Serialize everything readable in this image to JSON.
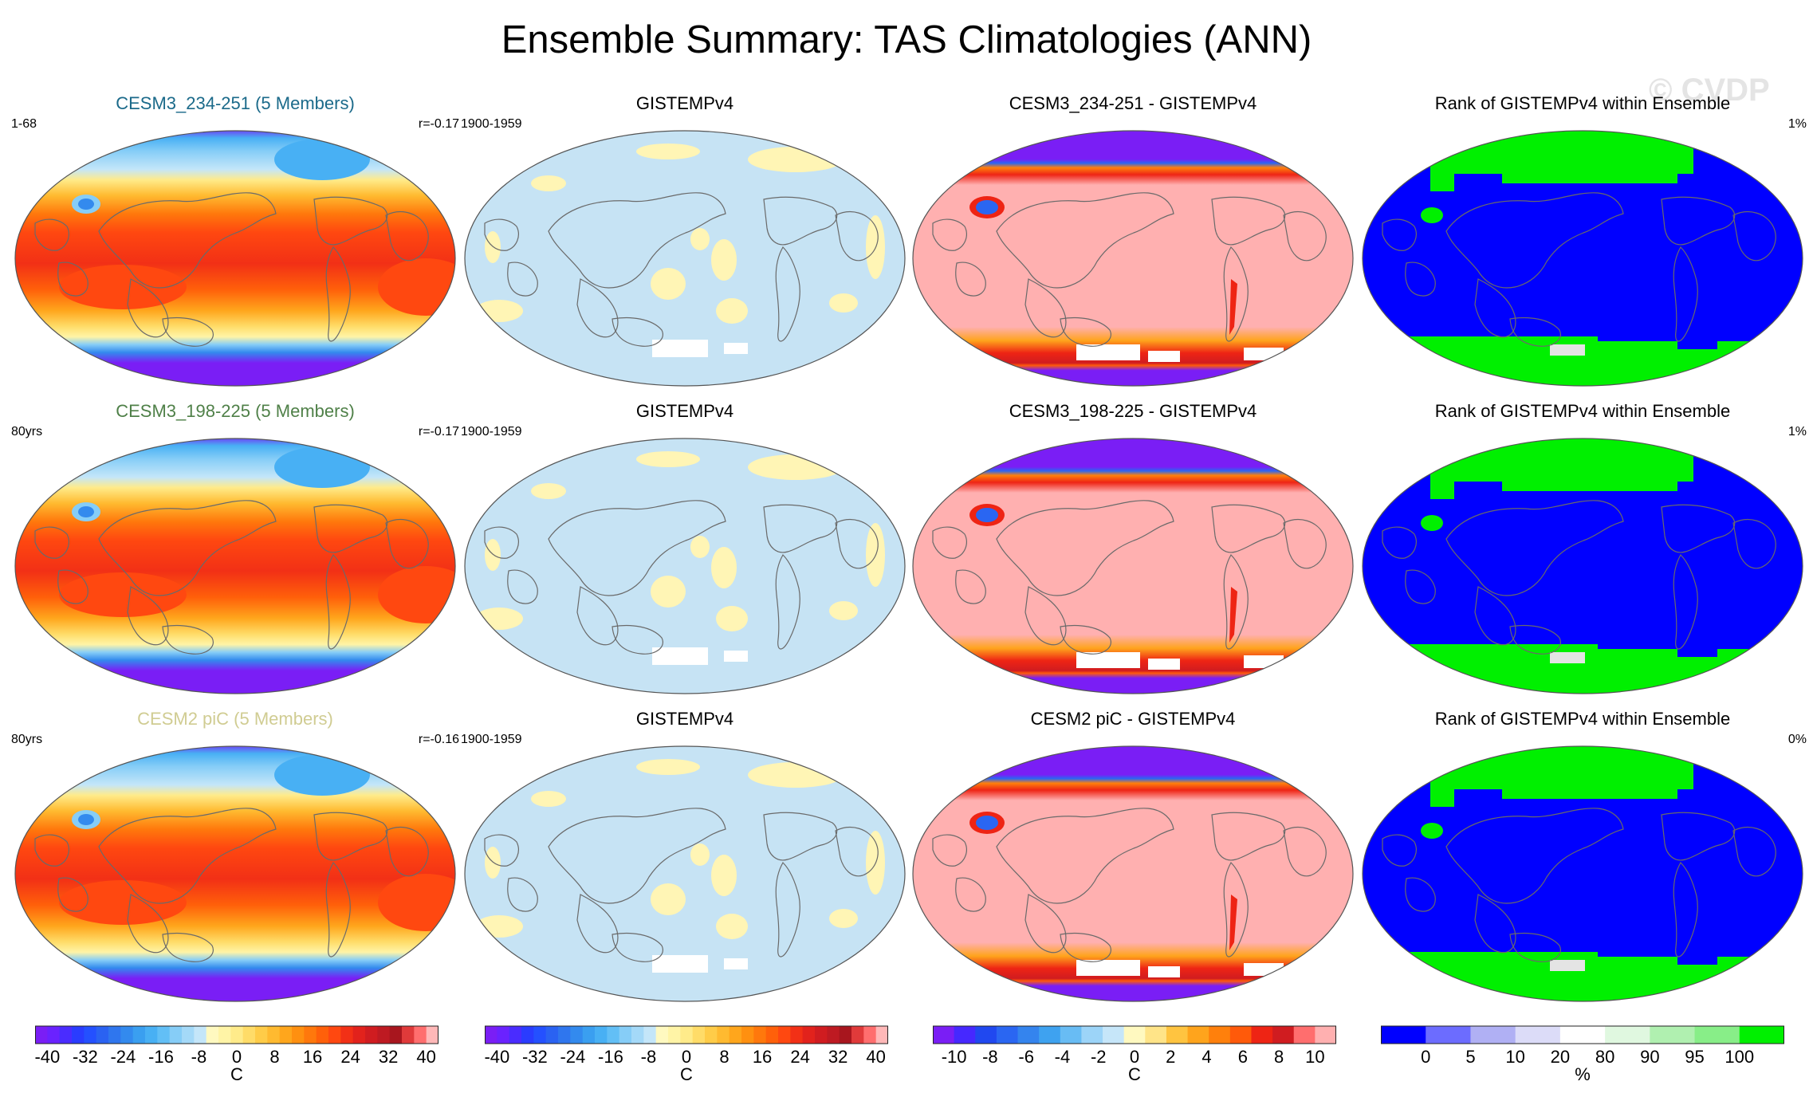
{
  "title": "Ensemble Summary: TAS Climatologies (ANN)",
  "watermark": "© CVDP",
  "colors": {
    "model_title_1": "#1b6a8a",
    "model_title_2": "#4f8048",
    "model_title_3": "#d0cc92",
    "obs_bg": "#c6e3f4",
    "obs_patch": "#fff5b5",
    "diff_bg": "#ffb0b0",
    "diff_cold": "#7a1ef5",
    "rank_low": "#0000ff",
    "rank_high": "#00f000",
    "rank_mid": "#e4e4e4"
  },
  "rows": [
    {
      "model": {
        "title": "CESM3_234-251 (5 Members)",
        "left": "1-68",
        "right": "r=-0.17"
      },
      "obs": {
        "title": "GISTEMPv4",
        "left": "1900-1959"
      },
      "diff": {
        "title": "CESM3_234-251 - GISTEMPv4"
      },
      "rank": {
        "title": "Rank of GISTEMPv4 within Ensemble",
        "right": "1%"
      }
    },
    {
      "model": {
        "title": "CESM3_198-225 (5 Members)",
        "left": "80yrs",
        "right": "r=-0.17"
      },
      "obs": {
        "title": "GISTEMPv4",
        "left": "1900-1959"
      },
      "diff": {
        "title": "CESM3_198-225 - GISTEMPv4"
      },
      "rank": {
        "title": "Rank of GISTEMPv4 within Ensemble",
        "right": "1%"
      }
    },
    {
      "model": {
        "title": "CESM2 piC (5 Members)",
        "left": "80yrs",
        "right": "r=-0.16"
      },
      "obs": {
        "title": "GISTEMPv4",
        "left": "1900-1959"
      },
      "diff": {
        "title": "CESM2 piC - GISTEMPv4"
      },
      "rank": {
        "title": "Rank of GISTEMPv4 within Ensemble",
        "right": "0%"
      }
    }
  ],
  "colorbars": {
    "clim": {
      "ticks": [
        "-40",
        "-32",
        "-24",
        "-16",
        "-8",
        "0",
        "8",
        "16",
        "24",
        "32",
        "40"
      ],
      "unit": "C",
      "colors": [
        "#7a1ef5",
        "#6a22ff",
        "#4a2cff",
        "#2a3cff",
        "#2450ff",
        "#2a62f2",
        "#2f76ee",
        "#338aee",
        "#3a9ff0",
        "#48b0f4",
        "#62bff6",
        "#86cdf7",
        "#a4d9f8",
        "#c4e6f9",
        "#fff9c0",
        "#fff4a6",
        "#ffeb8a",
        "#ffdc68",
        "#ffcc48",
        "#ffba30",
        "#ffa61c",
        "#ff9010",
        "#ff780c",
        "#ff600a",
        "#ff4810",
        "#f23016",
        "#e2221c",
        "#d01c20",
        "#be1a22",
        "#a8161e",
        "#e03a3a",
        "#ff6e6e",
        "#ffb8b8"
      ]
    },
    "diff": {
      "ticks": [
        "-10",
        "-8",
        "-6",
        "-4",
        "-2",
        "0",
        "2",
        "4",
        "6",
        "8",
        "10"
      ],
      "unit": "C",
      "colors": [
        "#7a1ef5",
        "#4628ff",
        "#2048f0",
        "#2a66f2",
        "#3484ee",
        "#3ea2f0",
        "#68bcf4",
        "#9cd4f8",
        "#c6e6f9",
        "#fff9c0",
        "#ffe488",
        "#ffc440",
        "#ffa41c",
        "#ff800c",
        "#ff5a0a",
        "#ee2414",
        "#d01c20",
        "#ff6e6e",
        "#ffb0b0"
      ]
    },
    "rank": {
      "ticks": [
        "0",
        "5",
        "10",
        "20",
        "80",
        "90",
        "95",
        "100"
      ],
      "unit": "%",
      "colors": [
        "#0000ff",
        "#6c6cff",
        "#b0b0f4",
        "#dcdcf8",
        "#ffffff",
        "#e0f8e0",
        "#b0f0b0",
        "#88ee88",
        "#00f000"
      ]
    }
  }
}
